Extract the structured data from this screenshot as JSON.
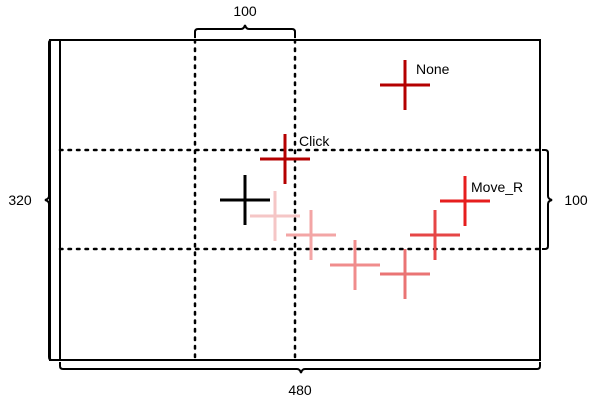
{
  "dimensions": {
    "width_label": "480",
    "height_label": "320",
    "column_label": "100",
    "row_label": "100"
  },
  "labels": {
    "none": "None",
    "click": "Click",
    "move_r": "Move_R"
  },
  "colors": {
    "frame": "#000000",
    "start_cross": "#000000",
    "none_cross": "#b40000",
    "click_cross": "#b40000",
    "move_r_cross": "#e61e1e",
    "trail_crosses": [
      "#f5c6c6",
      "#f3a5a5",
      "#f08c8c",
      "#ea7474",
      "#e64646"
    ]
  }
}
